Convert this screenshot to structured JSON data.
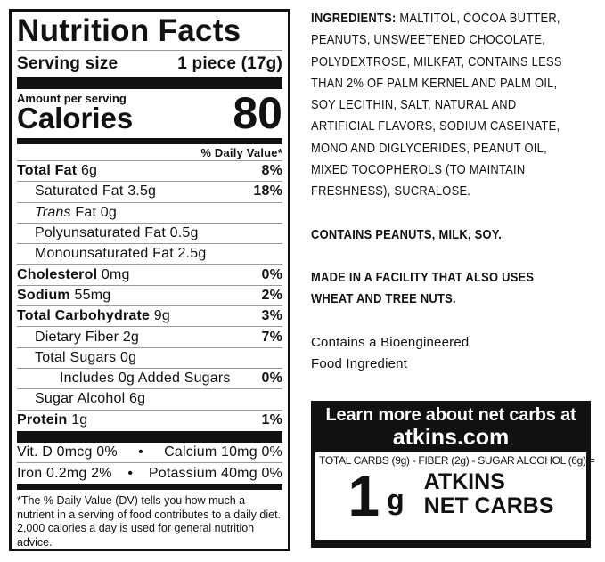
{
  "label": {
    "title": "Nutrition Facts",
    "serving_label": "Serving size",
    "serving_value": "1 piece (17g)",
    "amount_per_serving": "Amount per serving",
    "calories_label": "Calories",
    "calories_value": "80",
    "dv_header": "% Daily Value*",
    "rows": [
      {
        "name": "Total Fat",
        "amount": "6g",
        "dv": "8%"
      },
      {
        "name": "Saturated Fat",
        "amount": "3.5g",
        "dv": "18%"
      },
      {
        "name": "Trans",
        "name_rest": "Fat 0g",
        "dv": ""
      },
      {
        "name": "Polyunsaturated Fat 0.5g",
        "dv": ""
      },
      {
        "name": "Monounsaturated Fat 2.5g",
        "dv": ""
      },
      {
        "name": "Cholesterol",
        "amount": "0mg",
        "dv": "0%"
      },
      {
        "name": "Sodium",
        "amount": "55mg",
        "dv": "2%"
      },
      {
        "name": "Total Carbohydrate",
        "amount": "9g",
        "dv": "3%"
      },
      {
        "name": "Dietary Fiber 2g",
        "dv": "7%"
      },
      {
        "name": "Total Sugars 0g",
        "dv": ""
      },
      {
        "name": "Includes 0g Added Sugars",
        "dv": "0%"
      },
      {
        "name": "Sugar Alcohol 6g",
        "dv": ""
      },
      {
        "name": "Protein",
        "amount": "1g",
        "dv": "1%"
      }
    ],
    "micros": [
      {
        "left": "Vit. D 0mcg 0%",
        "right": "Calcium 10mg 0%"
      },
      {
        "left": "Iron 0.2mg 2%",
        "right": "Potassium 40mg 0%"
      }
    ],
    "bullet": "•",
    "footnote": "*The % Daily Value (DV) tells you how much a nutrient in a serving of food contributes to a daily diet. 2,000 calories a day is used for general nutrition advice."
  },
  "ingredients": {
    "label": "INGREDIENTS:",
    "lines": [
      "MALTITOL, COCOA BUTTER,",
      "PEANUTS, UNSWEETENED CHOCOLATE,",
      "POLYDEXTROSE, MILKFAT, CONTAINS LESS",
      "THAN 2% OF PALM KERNEL AND PALM OIL,",
      "SOY LECITHIN, SALT, NATURAL AND",
      "ARTIFICIAL FLAVORS, SODIUM CASEINATE,",
      "MONO AND DIGLYCERIDES, PEANUT OIL,",
      "MIXED TOCOPHEROLS (TO MAINTAIN",
      "FRESHNESS), SUCRALOSE."
    ]
  },
  "allergens": "CONTAINS PEANUTS, MILK, SOY.",
  "facility": [
    "MADE IN A FACILITY THAT ALSO USES",
    "WHEAT AND TREE NUTS."
  ],
  "bioengineered": [
    "Contains a Bioengineered",
    "Food Ingredient"
  ],
  "net_carbs": {
    "learn_more": "Learn more about net carbs at",
    "website": "atkins.com",
    "equation": "TOTAL CARBS (9g) - FIBER (2g) - SUGAR ALCOHOL (6g) =",
    "value": "1",
    "unit": "g",
    "line1": "ATKINS",
    "line2": "NET CARBS"
  }
}
